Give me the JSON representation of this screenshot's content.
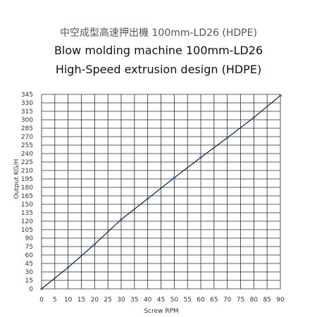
{
  "chart_data": {
    "type": "line",
    "title_cn": "中空成型高速押出機 100mm-LD26 (HDPE)",
    "title": "Blow molding machine 100mm-LD26",
    "subtitle": "High-Speed extrusion design (HDPE)",
    "xlabel": "Screw RPM",
    "ylabel": "Output KG/H",
    "xlim": [
      0,
      90
    ],
    "ylim": [
      0,
      345
    ],
    "xticks": [
      0,
      5,
      10,
      15,
      20,
      25,
      30,
      35,
      40,
      45,
      50,
      55,
      60,
      65,
      70,
      75,
      80,
      85,
      90
    ],
    "yticks": [
      0,
      15,
      30,
      45,
      60,
      75,
      90,
      105,
      120,
      135,
      150,
      165,
      180,
      195,
      210,
      225,
      240,
      255,
      270,
      285,
      300,
      315,
      330,
      345
    ],
    "grid": true,
    "series": [
      {
        "color": "#0b1f3a",
        "marker_color": "#2f6db5",
        "x": [
          0,
          10,
          20,
          30,
          40,
          50,
          60,
          70,
          80,
          90
        ],
        "y": [
          0,
          38,
          79,
          123,
          160,
          197,
          233,
          268,
          304,
          343
        ]
      }
    ]
  }
}
